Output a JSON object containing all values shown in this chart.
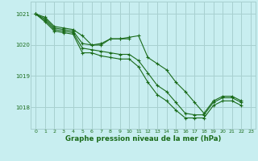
{
  "title": "Graphe pression niveau de la mer (hPa)",
  "background_color": "#c8eef0",
  "grid_color": "#a8d0d0",
  "line_color": "#1a6b1a",
  "xlim": [
    -0.5,
    23.5
  ],
  "ylim": [
    1017.3,
    1021.4
  ],
  "yticks": [
    1018,
    1019,
    1020,
    1021
  ],
  "xticks": [
    0,
    1,
    2,
    3,
    4,
    5,
    6,
    7,
    8,
    9,
    10,
    11,
    12,
    13,
    14,
    15,
    16,
    17,
    18,
    19,
    20,
    21,
    22,
    23
  ],
  "series": [
    {
      "x": [
        0,
        1,
        2,
        3,
        4,
        5,
        6,
        7,
        8,
        9,
        10,
        11,
        12,
        13,
        14,
        15,
        16,
        17,
        18,
        19,
        20,
        21,
        22
      ],
      "y": [
        1021.0,
        1020.9,
        1020.6,
        1020.55,
        1020.5,
        1020.3,
        1020.0,
        1020.05,
        1020.2,
        1020.2,
        1020.25,
        1020.3,
        1019.6,
        1019.4,
        1019.2,
        1018.8,
        1018.5,
        1018.15,
        1017.8,
        1018.2,
        1018.35,
        1018.35,
        1018.2
      ]
    },
    {
      "x": [
        0,
        1,
        2,
        3,
        4,
        5,
        6,
        7,
        8,
        9,
        10
      ],
      "y": [
        1021.0,
        1020.85,
        1020.55,
        1020.5,
        1020.45,
        1020.05,
        1020.0,
        1020.0,
        1020.2,
        1020.2,
        1020.2
      ]
    },
    {
      "x": [
        0,
        1,
        2,
        3,
        4,
        5,
        6,
        7,
        8,
        9,
        10,
        11,
        12,
        13,
        14,
        15,
        16,
        17,
        18,
        19,
        20,
        21,
        22
      ],
      "y": [
        1021.0,
        1020.8,
        1020.5,
        1020.45,
        1020.4,
        1019.9,
        1019.85,
        1019.8,
        1019.75,
        1019.7,
        1019.7,
        1019.5,
        1019.1,
        1018.7,
        1018.5,
        1018.15,
        1017.8,
        1017.75,
        1017.75,
        1018.15,
        1018.3,
        1018.3,
        1018.15
      ]
    },
    {
      "x": [
        0,
        1,
        2,
        3,
        4,
        5,
        6,
        7,
        8,
        9,
        10,
        11,
        12,
        13,
        14,
        15,
        16,
        17,
        18,
        19,
        20,
        21,
        22
      ],
      "y": [
        1021.0,
        1020.75,
        1020.45,
        1020.4,
        1020.35,
        1019.75,
        1019.75,
        1019.65,
        1019.6,
        1019.55,
        1019.55,
        1019.3,
        1018.8,
        1018.4,
        1018.2,
        1017.9,
        1017.65,
        1017.65,
        1017.65,
        1018.05,
        1018.2,
        1018.2,
        1018.05
      ]
    }
  ]
}
